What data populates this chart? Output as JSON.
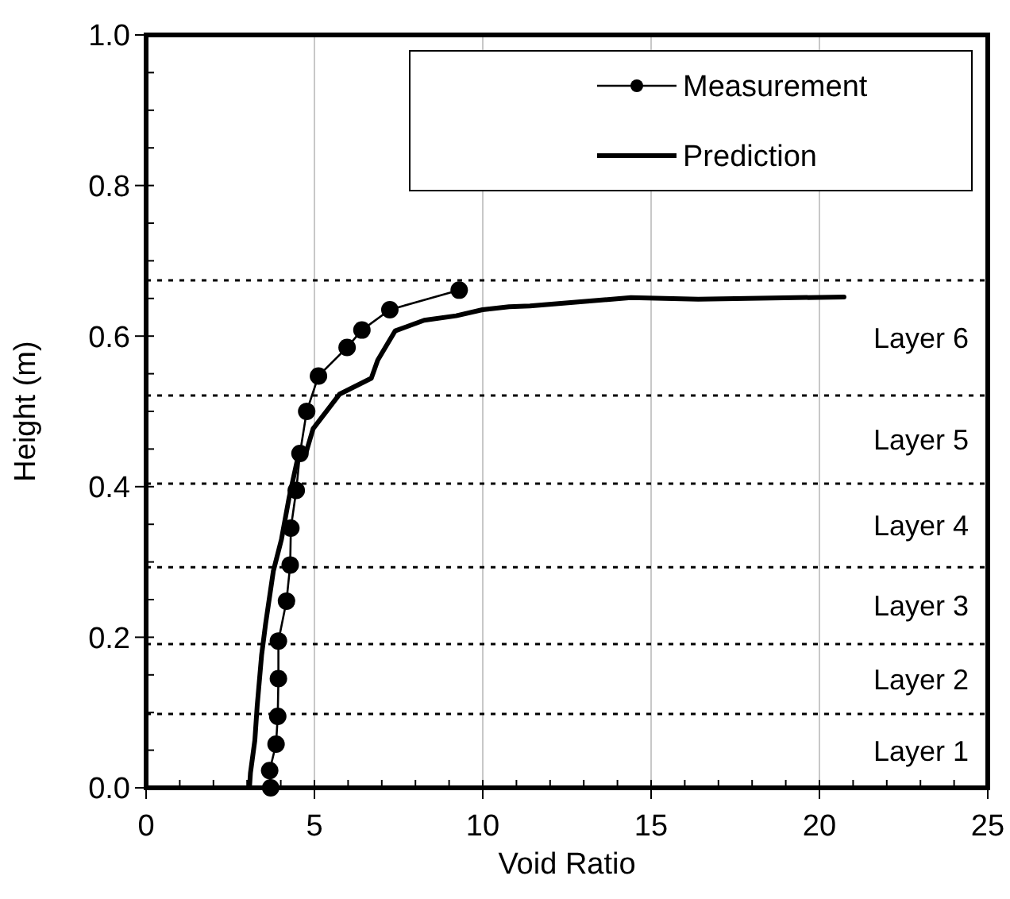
{
  "chart_data": {
    "type": "line",
    "xlabel": "Void Ratio",
    "ylabel": "Height (m)",
    "xlim": [
      0,
      25
    ],
    "xticks": [
      0,
      {
        "value": 1,
        "label": null
      },
      {
        "value": 2,
        "label": null
      },
      {
        "value": 3,
        "label": null
      },
      {
        "value": 4,
        "label": null
      },
      5,
      {
        "value": 6,
        "label": null
      },
      {
        "value": 7,
        "label": null
      },
      {
        "value": 8,
        "label": null
      },
      {
        "value": 9,
        "label": null
      },
      10,
      {
        "value": 11,
        "label": null
      },
      {
        "value": 12,
        "label": null
      },
      {
        "value": 13,
        "label": null
      },
      {
        "value": 14,
        "label": null
      },
      15,
      {
        "value": 16,
        "label": null
      },
      {
        "value": 17,
        "label": null
      },
      {
        "value": 18,
        "label": null
      },
      {
        "value": 19,
        "label": null
      },
      20,
      {
        "value": 21,
        "label": null
      },
      {
        "value": 22,
        "label": null
      },
      {
        "value": 23,
        "label": null
      },
      {
        "value": 24,
        "label": null
      },
      25
    ],
    "ylim": [
      0,
      1
    ],
    "yticks": [
      {
        "value": 0,
        "label": "0.0"
      },
      {
        "value": 0.05,
        "label": null
      },
      {
        "value": 0.1,
        "label": null
      },
      {
        "value": 0.15,
        "label": null
      },
      0.2,
      {
        "value": 0.25,
        "label": null
      },
      {
        "value": 0.3,
        "label": null
      },
      {
        "value": 0.35,
        "label": null
      },
      0.4,
      {
        "value": 0.45,
        "label": null
      },
      {
        "value": 0.5,
        "label": null
      },
      {
        "value": 0.55,
        "label": null
      },
      0.6,
      {
        "value": 0.65,
        "label": null
      },
      {
        "value": 0.7,
        "label": null
      },
      {
        "value": 0.75,
        "label": null
      },
      0.8,
      {
        "value": 0.85,
        "label": null
      },
      {
        "value": 0.9,
        "label": null
      },
      {
        "value": 0.95,
        "label": null
      },
      {
        "value": 1,
        "label": "1.0"
      }
    ],
    "grid": "x",
    "legend": "top right",
    "series": [
      {
        "name": "Measurement",
        "color": "#000000",
        "marker": "circle",
        "x": [
          3.7,
          3.67,
          3.86,
          3.91,
          3.93,
          3.93,
          4.17,
          4.28,
          4.3,
          4.46,
          4.57,
          4.77,
          5.12,
          5.97,
          6.41,
          7.24,
          9.3
        ],
        "values": [
          0,
          0.023,
          0.058,
          0.095,
          0.145,
          0.195,
          0.248,
          0.296,
          0.345,
          0.395,
          0.444,
          0.5,
          0.547,
          0.585,
          0.608,
          0.635,
          0.661
        ]
      },
      {
        "name": "Prediction",
        "color": "#000000",
        "marker": "none",
        "x": [
          3.07,
          3.1,
          3.23,
          3.3,
          3.43,
          3.55,
          3.78,
          4.02,
          4.25,
          4.49,
          4.73,
          4.96,
          5.75,
          6.69,
          6.88,
          7.4,
          8.26,
          9.21,
          9.99,
          10.78,
          11.4,
          14.4,
          16.4,
          20.73
        ],
        "values": [
          0,
          0.02,
          0.063,
          0.109,
          0.176,
          0.218,
          0.288,
          0.33,
          0.386,
          0.435,
          0.442,
          0.477,
          0.523,
          0.544,
          0.568,
          0.607,
          0.621,
          0.627,
          0.635,
          0.639,
          0.64,
          0.651,
          0.649,
          0.652
        ]
      }
    ],
    "ref_lines": [
      {
        "axis": "y",
        "value": 0.098,
        "label": "Layer 1",
        "line_style": "dotted"
      },
      {
        "axis": "y",
        "value": 0.191,
        "label": "Layer 2",
        "line_style": "dotted"
      },
      {
        "axis": "y",
        "value": 0.293,
        "label": "Layer 3",
        "line_style": "dotted"
      },
      {
        "axis": "y",
        "value": 0.404,
        "label": "Layer 4",
        "line_style": "dotted"
      },
      {
        "axis": "y",
        "value": 0.521,
        "label": "Layer 5",
        "line_style": "dotted"
      },
      {
        "axis": "y",
        "value": 0.674,
        "label": "Layer 6",
        "line_style": "dotted"
      }
    ]
  }
}
